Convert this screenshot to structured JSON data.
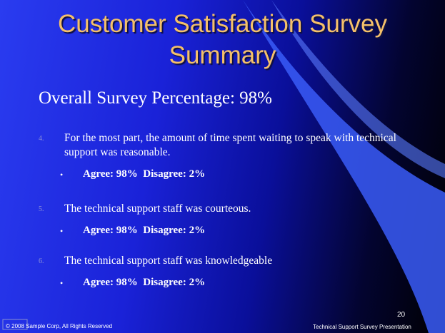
{
  "header": {
    "title": [
      "Customer Satisfaction Survey",
      "Summary"
    ],
    "subtitle": "Overall Survey Percentage: 98%"
  },
  "items": [
    {
      "number": "4.",
      "text": "For the most part, the amount of time spent waiting to speak with technical support was reasonable.",
      "bullet": "•",
      "result": "Agree: 98%  Disagree: 2%"
    },
    {
      "number": "5.",
      "text": "The technical support staff was courteous.",
      "bullet": "•",
      "result": "Agree: 98%  Disagree: 2%"
    },
    {
      "number": "6.",
      "text": "The technical support staff was knowledgeable",
      "bullet": "•",
      "result": "Agree: 98%  Disagree: 2%"
    }
  ],
  "footer": {
    "copyright": "© 2008 Sample Corp, All Rights Reserved",
    "page": "20",
    "presentation": "Technical Support Survey  Presentation"
  }
}
